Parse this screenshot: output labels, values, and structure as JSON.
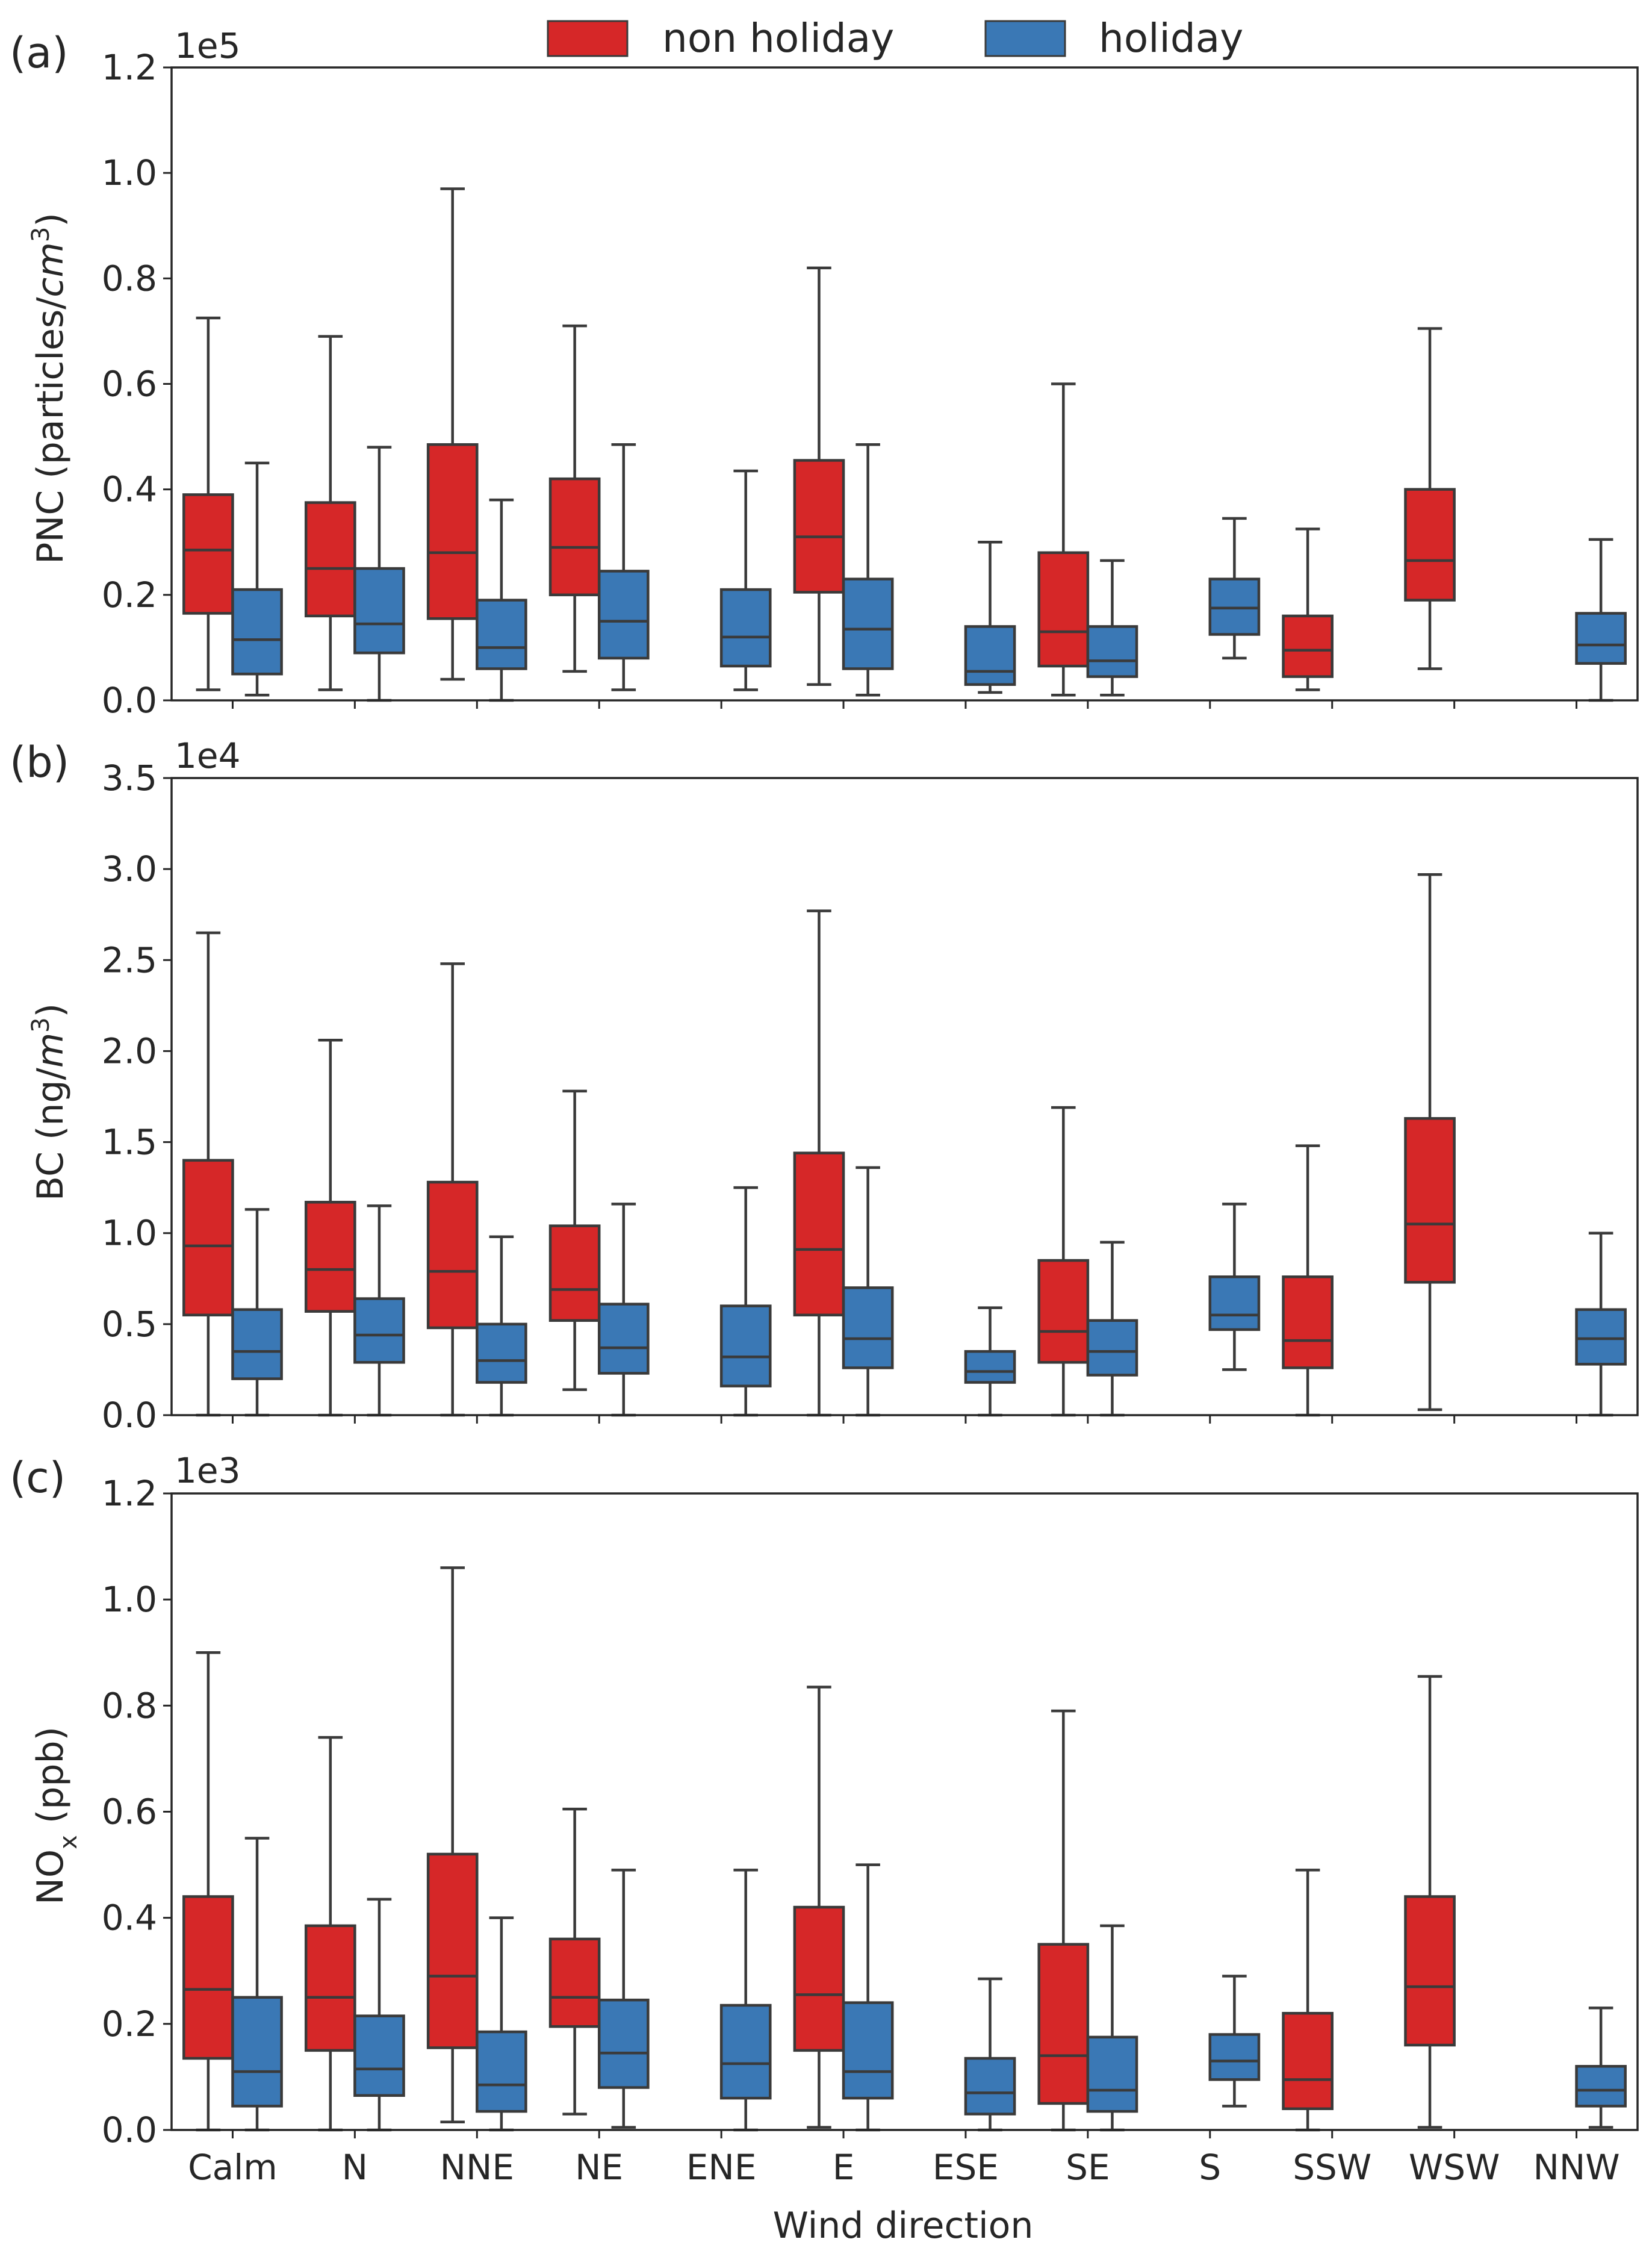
{
  "colors": {
    "non_holiday": "#d62728",
    "holiday": "#3a78b5",
    "line": "#3a3a3a",
    "frame": "#262626"
  },
  "legend": {
    "labels": [
      "non holiday",
      "holiday"
    ]
  },
  "chart_data": [
    {
      "panel_label": "(a)",
      "type": "box",
      "title": "",
      "ylabel": "PNC (particles/cm³)",
      "ylabel_main": "PNC (particles/",
      "ylabel_italic": "cm",
      "ylabel_sup": "3",
      "ylabel_close": ")",
      "scale_text": "1e5",
      "ylim": [
        0,
        1.2
      ],
      "yticks": [
        0.0,
        0.2,
        0.4,
        0.6,
        0.8,
        1.0,
        1.2
      ],
      "ytick_labels": [
        "0.0",
        "0.2",
        "0.4",
        "0.6",
        "0.8",
        "1.0",
        "1.2"
      ],
      "categories": [
        "Calm",
        "N",
        "NNE",
        "NE",
        "ENE",
        "E",
        "ESE",
        "SE",
        "S",
        "SSW",
        "WSW",
        "NNW"
      ],
      "series": [
        {
          "name": "non holiday",
          "boxes": [
            {
              "category": "Calm",
              "min": 0.02,
              "q1": 0.165,
              "median": 0.285,
              "q3": 0.39,
              "max": 0.725
            },
            {
              "category": "N",
              "min": 0.02,
              "q1": 0.16,
              "median": 0.25,
              "q3": 0.375,
              "max": 0.69
            },
            {
              "category": "NNE",
              "min": 0.04,
              "q1": 0.155,
              "median": 0.28,
              "q3": 0.485,
              "max": 0.97
            },
            {
              "category": "NE",
              "min": 0.055,
              "q1": 0.2,
              "median": 0.29,
              "q3": 0.42,
              "max": 0.71
            },
            null,
            {
              "category": "E",
              "min": 0.03,
              "q1": 0.205,
              "median": 0.31,
              "q3": 0.455,
              "max": 0.82
            },
            null,
            {
              "category": "SE",
              "min": 0.01,
              "q1": 0.065,
              "median": 0.13,
              "q3": 0.28,
              "max": 0.6
            },
            null,
            {
              "category": "SSW",
              "min": 0.02,
              "q1": 0.045,
              "median": 0.095,
              "q3": 0.16,
              "max": 0.325
            },
            {
              "category": "WSW",
              "min": 0.06,
              "q1": 0.19,
              "median": 0.265,
              "q3": 0.4,
              "max": 0.705
            },
            null
          ]
        },
        {
          "name": "holiday",
          "boxes": [
            {
              "category": "Calm",
              "min": 0.01,
              "q1": 0.05,
              "median": 0.115,
              "q3": 0.21,
              "max": 0.45
            },
            {
              "category": "N",
              "min": 0.0,
              "q1": 0.09,
              "median": 0.145,
              "q3": 0.25,
              "max": 0.48
            },
            {
              "category": "NNE",
              "min": 0.0,
              "q1": 0.06,
              "median": 0.1,
              "q3": 0.19,
              "max": 0.38
            },
            {
              "category": "NE",
              "min": 0.02,
              "q1": 0.08,
              "median": 0.15,
              "q3": 0.245,
              "max": 0.485
            },
            {
              "category": "ENE",
              "min": 0.02,
              "q1": 0.065,
              "median": 0.12,
              "q3": 0.21,
              "max": 0.435
            },
            {
              "category": "E",
              "min": 0.01,
              "q1": 0.06,
              "median": 0.135,
              "q3": 0.23,
              "max": 0.485
            },
            {
              "category": "ESE",
              "min": 0.015,
              "q1": 0.03,
              "median": 0.055,
              "q3": 0.14,
              "max": 0.3
            },
            {
              "category": "SE",
              "min": 0.01,
              "q1": 0.045,
              "median": 0.075,
              "q3": 0.14,
              "max": 0.265
            },
            {
              "category": "S",
              "min": 0.08,
              "q1": 0.125,
              "median": 0.175,
              "q3": 0.23,
              "max": 0.345
            },
            null,
            null,
            {
              "category": "NNW",
              "min": 0.0,
              "q1": 0.07,
              "median": 0.105,
              "q3": 0.165,
              "max": 0.305
            }
          ]
        }
      ]
    },
    {
      "panel_label": "(b)",
      "type": "box",
      "title": "",
      "ylabel": "BC (ng/m³)",
      "ylabel_main": "BC (ng/",
      "ylabel_italic": "m",
      "ylabel_sup": "3",
      "ylabel_close": ")",
      "scale_text": "1e4",
      "ylim": [
        0,
        3.5
      ],
      "yticks": [
        0.0,
        0.5,
        1.0,
        1.5,
        2.0,
        2.5,
        3.0,
        3.5
      ],
      "ytick_labels": [
        "0.0",
        "0.5",
        "1.0",
        "1.5",
        "2.0",
        "2.5",
        "3.0",
        "3.5"
      ],
      "categories": [
        "Calm",
        "N",
        "NNE",
        "NE",
        "ENE",
        "E",
        "ESE",
        "SE",
        "S",
        "SSW",
        "WSW",
        "NNW"
      ],
      "series": [
        {
          "name": "non holiday",
          "boxes": [
            {
              "category": "Calm",
              "min": 0.0,
              "q1": 0.55,
              "median": 0.93,
              "q3": 1.4,
              "max": 2.65
            },
            {
              "category": "N",
              "min": 0.0,
              "q1": 0.57,
              "median": 0.8,
              "q3": 1.17,
              "max": 2.06
            },
            {
              "category": "NNE",
              "min": 0.0,
              "q1": 0.48,
              "median": 0.79,
              "q3": 1.28,
              "max": 2.48
            },
            {
              "category": "NE",
              "min": 0.14,
              "q1": 0.52,
              "median": 0.69,
              "q3": 1.04,
              "max": 1.78
            },
            null,
            {
              "category": "E",
              "min": 0.0,
              "q1": 0.55,
              "median": 0.91,
              "q3": 1.44,
              "max": 2.77
            },
            null,
            {
              "category": "SE",
              "min": 0.0,
              "q1": 0.29,
              "median": 0.46,
              "q3": 0.85,
              "max": 1.69
            },
            null,
            {
              "category": "SSW",
              "min": 0.0,
              "q1": 0.26,
              "median": 0.41,
              "q3": 0.76,
              "max": 1.48
            },
            {
              "category": "WSW",
              "min": 0.03,
              "q1": 0.73,
              "median": 1.05,
              "q3": 1.63,
              "max": 2.97
            },
            null
          ]
        },
        {
          "name": "holiday",
          "boxes": [
            {
              "category": "Calm",
              "min": 0.0,
              "q1": 0.2,
              "median": 0.35,
              "q3": 0.58,
              "max": 1.13
            },
            {
              "category": "N",
              "min": 0.0,
              "q1": 0.29,
              "median": 0.44,
              "q3": 0.64,
              "max": 1.15
            },
            {
              "category": "NNE",
              "min": 0.0,
              "q1": 0.18,
              "median": 0.3,
              "q3": 0.5,
              "max": 0.98
            },
            {
              "category": "NE",
              "min": 0.0,
              "q1": 0.23,
              "median": 0.37,
              "q3": 0.61,
              "max": 1.16
            },
            {
              "category": "ENE",
              "min": 0.0,
              "q1": 0.16,
              "median": 0.32,
              "q3": 0.6,
              "max": 1.25
            },
            {
              "category": "E",
              "min": 0.0,
              "q1": 0.26,
              "median": 0.42,
              "q3": 0.7,
              "max": 1.36
            },
            {
              "category": "ESE",
              "min": 0.0,
              "q1": 0.18,
              "median": 0.24,
              "q3": 0.35,
              "max": 0.59
            },
            {
              "category": "SE",
              "min": 0.0,
              "q1": 0.22,
              "median": 0.35,
              "q3": 0.52,
              "max": 0.95
            },
            {
              "category": "S",
              "min": 0.25,
              "q1": 0.47,
              "median": 0.55,
              "q3": 0.76,
              "max": 1.16
            },
            null,
            null,
            {
              "category": "NNW",
              "min": 0.0,
              "q1": 0.28,
              "median": 0.42,
              "q3": 0.58,
              "max": 1.0
            }
          ]
        }
      ]
    },
    {
      "panel_label": "(c)",
      "type": "box",
      "title": "",
      "xlabel": "Wind direction",
      "ylabel": "NOx (ppb)",
      "ylabel_main": "NO",
      "ylabel_sub": "x",
      "ylabel_close": " (ppb)",
      "scale_text": "1e3",
      "ylim": [
        0,
        1.2
      ],
      "yticks": [
        0.0,
        0.2,
        0.4,
        0.6,
        0.8,
        1.0,
        1.2
      ],
      "ytick_labels": [
        "0.0",
        "0.2",
        "0.4",
        "0.6",
        "0.8",
        "1.0",
        "1.2"
      ],
      "categories": [
        "Calm",
        "N",
        "NNE",
        "NE",
        "ENE",
        "E",
        "ESE",
        "SE",
        "S",
        "SSW",
        "WSW",
        "NNW"
      ],
      "series": [
        {
          "name": "non holiday",
          "boxes": [
            {
              "category": "Calm",
              "min": 0.0,
              "q1": 0.135,
              "median": 0.265,
              "q3": 0.44,
              "max": 0.9
            },
            {
              "category": "N",
              "min": 0.0,
              "q1": 0.15,
              "median": 0.25,
              "q3": 0.385,
              "max": 0.74
            },
            {
              "category": "NNE",
              "min": 0.015,
              "q1": 0.155,
              "median": 0.29,
              "q3": 0.52,
              "max": 1.06
            },
            {
              "category": "NE",
              "min": 0.03,
              "q1": 0.195,
              "median": 0.25,
              "q3": 0.36,
              "max": 0.605
            },
            null,
            {
              "category": "E",
              "min": 0.005,
              "q1": 0.15,
              "median": 0.255,
              "q3": 0.42,
              "max": 0.835
            },
            null,
            {
              "category": "SE",
              "min": 0.0,
              "q1": 0.05,
              "median": 0.14,
              "q3": 0.35,
              "max": 0.79
            },
            null,
            {
              "category": "SSW",
              "min": 0.0,
              "q1": 0.04,
              "median": 0.095,
              "q3": 0.22,
              "max": 0.49
            },
            {
              "category": "WSW",
              "min": 0.005,
              "q1": 0.16,
              "median": 0.27,
              "q3": 0.44,
              "max": 0.855
            },
            null
          ]
        },
        {
          "name": "holiday",
          "boxes": [
            {
              "category": "Calm",
              "min": 0.0,
              "q1": 0.045,
              "median": 0.11,
              "q3": 0.25,
              "max": 0.55
            },
            {
              "category": "N",
              "min": 0.0,
              "q1": 0.065,
              "median": 0.115,
              "q3": 0.215,
              "max": 0.435
            },
            {
              "category": "NNE",
              "min": 0.0,
              "q1": 0.035,
              "median": 0.085,
              "q3": 0.185,
              "max": 0.4
            },
            {
              "category": "NE",
              "min": 0.005,
              "q1": 0.08,
              "median": 0.145,
              "q3": 0.245,
              "max": 0.49
            },
            {
              "category": "ENE",
              "min": 0.0,
              "q1": 0.06,
              "median": 0.125,
              "q3": 0.235,
              "max": 0.49
            },
            {
              "category": "E",
              "min": 0.0,
              "q1": 0.06,
              "median": 0.11,
              "q3": 0.24,
              "max": 0.5
            },
            {
              "category": "ESE",
              "min": 0.0,
              "q1": 0.03,
              "median": 0.07,
              "q3": 0.135,
              "max": 0.285
            },
            {
              "category": "SE",
              "min": 0.0,
              "q1": 0.035,
              "median": 0.075,
              "q3": 0.175,
              "max": 0.385
            },
            {
              "category": "S",
              "min": 0.045,
              "q1": 0.095,
              "median": 0.13,
              "q3": 0.18,
              "max": 0.29
            },
            null,
            null,
            {
              "category": "NNW",
              "min": 0.005,
              "q1": 0.045,
              "median": 0.075,
              "q3": 0.12,
              "max": 0.23
            }
          ]
        }
      ]
    }
  ]
}
